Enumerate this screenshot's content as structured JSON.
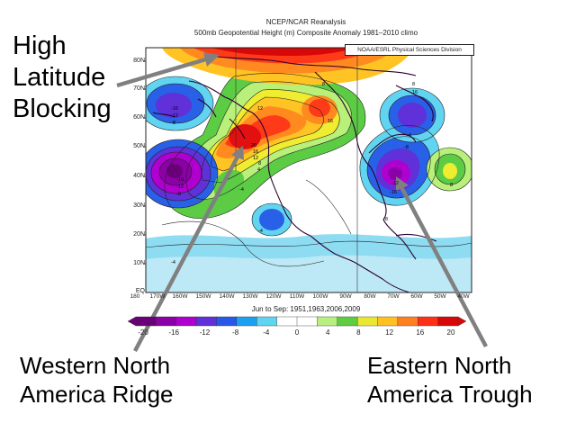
{
  "callouts": {
    "high": [
      "High",
      "Latitude",
      "Blocking"
    ],
    "west": [
      "Western North",
      "America Ridge"
    ],
    "east": [
      "Eastern North",
      "America Trough"
    ]
  },
  "map": {
    "title_line1": "NCEP/NCAR Reanalysis",
    "title_line2": "500mb Geopotential Height (m) Composite Anomaly 1981–2010 climo",
    "credit": "NOAA/ESRL Physical Sciences Division",
    "dates": "Jun to Sep: 1951,1963,2006,2009",
    "lat_labels": [
      "80N",
      "70N",
      "60N",
      "50N",
      "40N",
      "30N",
      "20N",
      "10N",
      "EQ"
    ],
    "lon_labels": [
      "180",
      "170W",
      "160W",
      "150W",
      "140W",
      "130W",
      "120W",
      "110W",
      "100W",
      "90W",
      "80W",
      "70W",
      "60W",
      "50W",
      "40W"
    ],
    "colorbar_ticks": [
      "-20",
      "-16",
      "-12",
      "-8",
      "-4",
      "0",
      "4",
      "8",
      "12",
      "16",
      "20"
    ],
    "colorbar_colors": [
      "#6a0078",
      "#8c00a8",
      "#b000d0",
      "#6030d8",
      "#2858e8",
      "#1ea0f0",
      "#60d4f0",
      "#ffffff",
      "#ffffff",
      "#b8f080",
      "#60cc40",
      "#e8e830",
      "#ffc020",
      "#ff8020",
      "#ff3018",
      "#d80808"
    ],
    "anomaly_labels": [
      "8",
      "12",
      "16",
      "20",
      "16",
      "12",
      "8",
      "4",
      "-4",
      "-16",
      "-12",
      "-8",
      "-16",
      "-12",
      "-8",
      "-4",
      "-4",
      "-8",
      "-16",
      "-12",
      "8",
      "16",
      "-8",
      "-4",
      "8"
    ]
  }
}
